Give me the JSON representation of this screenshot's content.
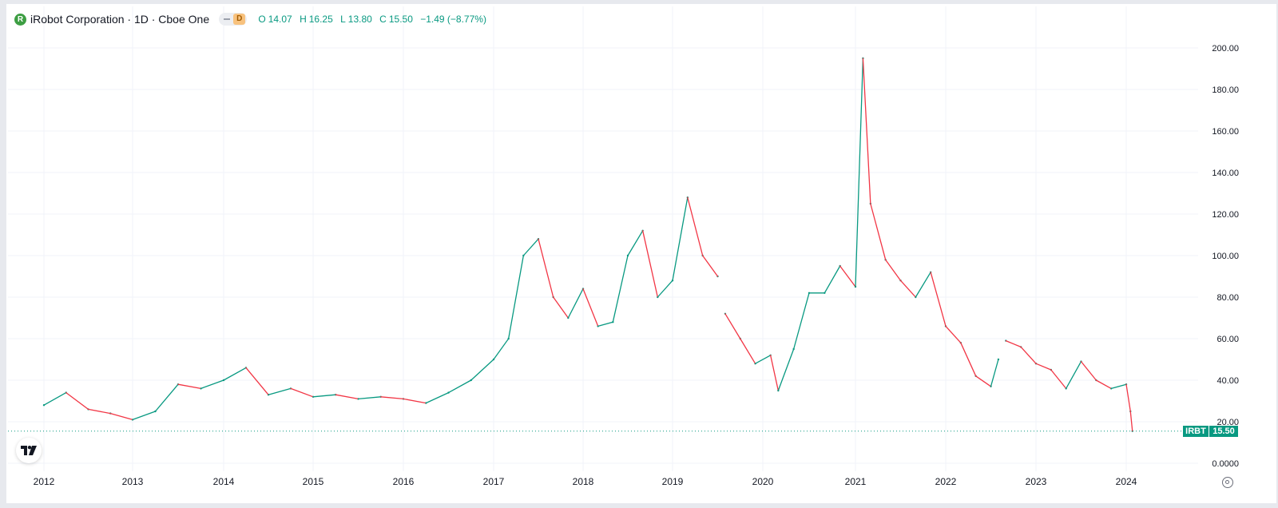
{
  "header": {
    "logo_letter": "R",
    "title": "iRobot Corporation · 1D · Cboe One",
    "interval_badge": "D",
    "open_label": "O",
    "open": "14.07",
    "high_label": "H",
    "high": "16.25",
    "low_label": "L",
    "low": "13.80",
    "close_label": "C",
    "close": "15.50",
    "change": "−1.49 (−8.77%)"
  },
  "last_price": {
    "symbol": "IRBT",
    "value": "15.50",
    "price": 15.5
  },
  "colors": {
    "up": "#089981",
    "down": "#f23645",
    "grid": "#f0f3fa",
    "axis_text": "#131722"
  },
  "icons": {
    "brand": "tradingview-logo-icon",
    "settings": "gear-icon"
  },
  "chart_data": {
    "type": "line",
    "series": [
      {
        "x": [
          "2012-01",
          "2012-04",
          "2012-07",
          "2012-10",
          "2013-01",
          "2013-04",
          "2013-07",
          "2013-10",
          "2014-01",
          "2014-04",
          "2014-07",
          "2014-10",
          "2015-01",
          "2015-04",
          "2015-07",
          "2015-10",
          "2016-01",
          "2016-04",
          "2016-07",
          "2016-10",
          "2017-01",
          "2017-03",
          "2017-05",
          "2017-07",
          "2017-09",
          "2017-11",
          "2018-01",
          "2018-03",
          "2018-05",
          "2018-07",
          "2018-09",
          "2018-11",
          "2019-01",
          "2019-03",
          "2019-05",
          "2019-07"
        ],
        "values": [
          28,
          34,
          26,
          24,
          21,
          25,
          38,
          36,
          40,
          46,
          33,
          36,
          32,
          33,
          31,
          32,
          31,
          29,
          34,
          40,
          50,
          60,
          100,
          108,
          80,
          70,
          84,
          66,
          68,
          100,
          112,
          80,
          88,
          128,
          100,
          90
        ]
      },
      {
        "x": [
          "2019-08",
          "2019-10",
          "2019-12",
          "2020-02",
          "2020-03",
          "2020-05",
          "2020-07",
          "2020-09",
          "2020-11",
          "2021-01",
          "2021-02",
          "2021-03",
          "2021-05",
          "2021-07",
          "2021-09",
          "2021-11",
          "2022-01",
          "2022-03",
          "2022-05",
          "2022-07",
          "2022-08"
        ],
        "values": [
          72,
          60,
          48,
          52,
          35,
          55,
          82,
          82,
          95,
          85,
          195,
          125,
          98,
          88,
          80,
          92,
          66,
          58,
          42,
          37,
          50
        ]
      },
      {
        "x": [
          "2022-09",
          "2022-11",
          "2023-01",
          "2023-03",
          "2023-05",
          "2023-07",
          "2023-09",
          "2023-11",
          "2024-01",
          "2024-01-18",
          "2024-01-26"
        ],
        "values": [
          59,
          56,
          48,
          45,
          36,
          49,
          40,
          36,
          38,
          25,
          15.5
        ]
      }
    ],
    "x_ticks": [
      "2012",
      "2013",
      "2014",
      "2015",
      "2016",
      "2017",
      "2018",
      "2019",
      "2020",
      "2021",
      "2022",
      "2023",
      "2024"
    ],
    "y_ticks": [
      "0.0000",
      "20.00",
      "40.00",
      "60.00",
      "80.00",
      "100.00",
      "120.00",
      "140.00",
      "160.00",
      "180.00",
      "200.00"
    ],
    "ylim": [
      0,
      200
    ],
    "xlim": [
      "2011-09",
      "2024-12"
    ],
    "grid": true,
    "y_axis_side": "right"
  }
}
